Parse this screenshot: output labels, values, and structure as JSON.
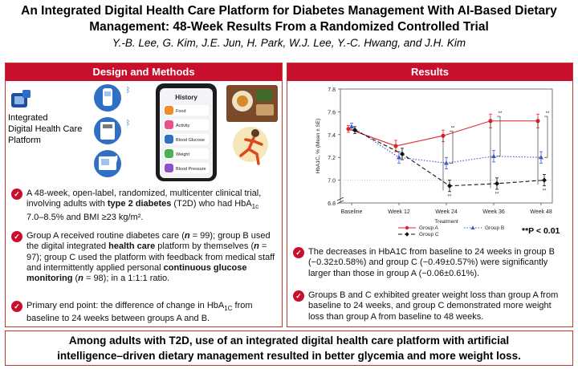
{
  "title_line1": "An Integrated Digital Health Care Platform for Diabetes Management With AI-Based Dietary",
  "title_line2": "Management: 48-Week Results From a Randomized Controlled Trial",
  "authors": "Y.-B. Lee, G. Kim, J.E. Jun, H. Park, W.J. Lee, Y.-C. Hwang, and J.H. Kim",
  "left_panel": {
    "heading": "Design and Methods",
    "platform_label_1": "Integrated",
    "platform_label_2": "Digital Health Care",
    "platform_label_3": "Platform",
    "phone": {
      "header": "History",
      "items": [
        "Food",
        "Activity",
        "Blood Glucose",
        "Weight",
        "Blood Pressure"
      ]
    },
    "bullets": [
      {
        "pre": "A 48-week, open-label, randomized, multicenter clinical trial, involving adults with ",
        "b1": "type 2 diabetes",
        "mid": " (T2D) who had HbA",
        "sub": "1c",
        "post": " 7.0–8.5% and BMI ≥23 kg/m²."
      },
      {
        "p1": "Group A received routine diabetes care (",
        "n1": "n",
        "p2": " = 99); group B used the digital integrated ",
        "b1": "health care",
        "p3": " platform by themselves (",
        "n2": "n",
        "p4": " = 97); group C used the platform with feedback from medical staff and intermittently applied personal ",
        "b2": "continuous glucose monitoring",
        "p5": " (",
        "n3": "n",
        "p6": " = 98); in a 1:1:1 ratio."
      },
      {
        "pre": "Primary end point: the difference of change in HbA",
        "sub": "1C",
        "post": " from baseline to 24 weeks between groups A and B."
      }
    ]
  },
  "right_panel": {
    "heading": "Results",
    "significance_note": "**P < 0.01",
    "bullets": [
      "The decreases in HbA1C from baseline to 24 weeks in group B (−0.32±0.58%) and group C (−0.49±0.57%) were significantly larger than those in group A (−0.06±0.61%).",
      "Groups B and C exhibited greater weight loss than group A from baseline to 24 weeks, and group C demonstrated more weight loss than group A from baseline to 48 weeks."
    ]
  },
  "chart_data": {
    "type": "line",
    "ylabel": "HbA1C, % (Mean ± SE)",
    "x": [
      "Baseline",
      "Week 12",
      "Week 24",
      "Week 36",
      "Week 48"
    ],
    "yticks": [
      6.8,
      7.0,
      7.2,
      7.4,
      7.6,
      7.8
    ],
    "ylim": [
      6.8,
      7.8
    ],
    "y_axis_break": true,
    "legend_title": "Treatment",
    "legend_position": "bottom",
    "series": [
      {
        "name": "Group A",
        "color": "#e0262b",
        "marker": "circle",
        "line": "solid",
        "values": [
          7.45,
          7.3,
          7.39,
          7.52,
          7.52
        ],
        "err": [
          0.03,
          0.05,
          0.05,
          0.06,
          0.06
        ]
      },
      {
        "name": "Group B",
        "color": "#3b57c4",
        "marker": "triangle",
        "line": "dotted",
        "values": [
          7.47,
          7.2,
          7.15,
          7.21,
          7.2
        ],
        "err": [
          0.03,
          0.05,
          0.05,
          0.05,
          0.05
        ]
      },
      {
        "name": "Group C",
        "color": "#111111",
        "marker": "diamond",
        "line": "dashed",
        "values": [
          7.44,
          7.23,
          6.95,
          6.97,
          7.0
        ],
        "err": [
          0.03,
          0.05,
          0.05,
          0.05,
          0.05
        ]
      }
    ],
    "annotations": [
      "**",
      "**",
      "**",
      "**",
      "**",
      "**"
    ]
  },
  "bottom_text_line1": "Among adults with T2D, use of an integrated digital health care platform with artificial",
  "bottom_text_line2": "intelligence–driven dietary management resulted in better glycemia and more weight loss."
}
